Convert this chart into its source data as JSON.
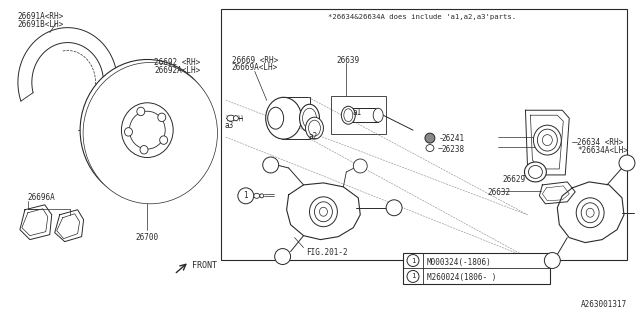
{
  "bg_color": "#f5f5f5",
  "line_color": "#2a2a2a",
  "gray_color": "#888888",
  "note_text": "*26634&26634A does include 'a1,a2,a3'parts.",
  "label_26691": "26691A<RH>\n26691B<LH>",
  "label_26692": "26692 <RH>\n26692A<LH>",
  "label_26696": "26696A",
  "label_26700": "26700",
  "label_26669": "26669 <RH>\n26669A<LH>",
  "label_26639": "26639",
  "label_26241": "26241",
  "label_26238": "26238",
  "label_26634": "26634 <RH>\n*26634A<LH>",
  "label_26629": "26629",
  "label_26632": "26632",
  "label_fig": "FIG.201-2",
  "label_front": "FRONT",
  "label_fignum": "A263001317",
  "label_m1": "M000324(-1806)",
  "label_m2": "M260024(1806- )",
  "label_a1": "a1",
  "label_a2": "a2",
  "label_a3": "a3",
  "fs": 5.5,
  "fs_note": 5.2
}
